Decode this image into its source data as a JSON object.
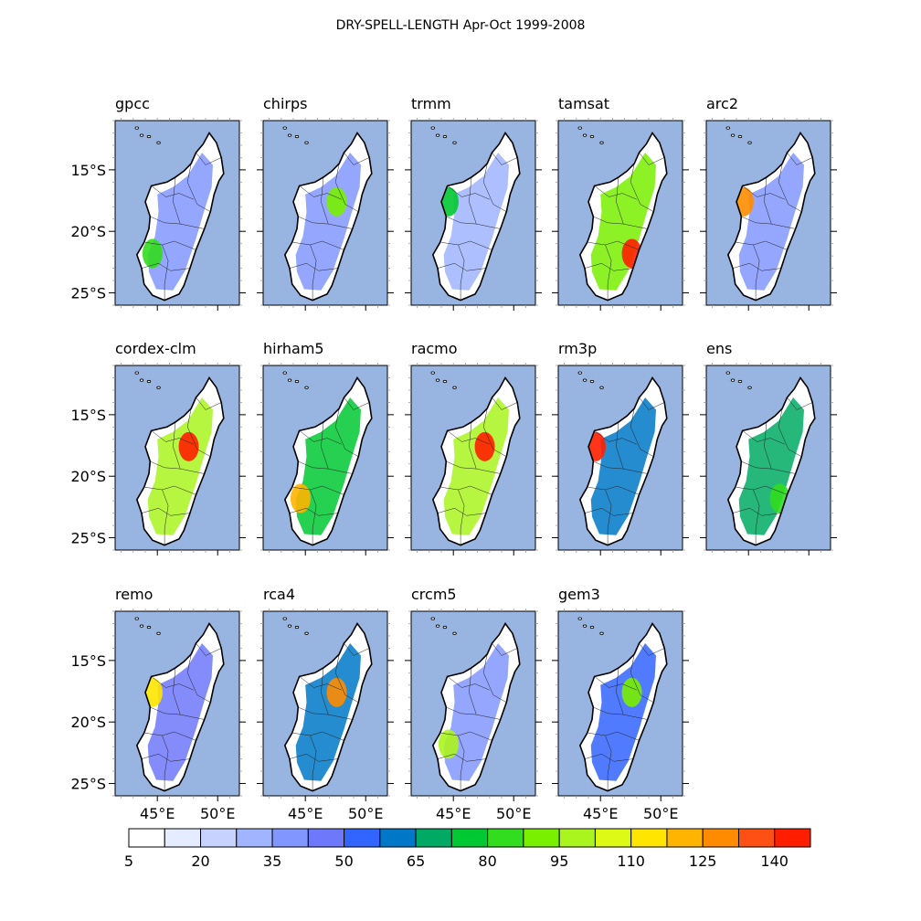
{
  "chart_data": {
    "type": "heatmap",
    "title": "DRY-SPELL-LENGTH Apr-Oct 1999-2008",
    "xlabel": "",
    "ylabel": "",
    "lat_ticks": [
      -15,
      -20,
      -25
    ],
    "lat_tick_labels": [
      "15°S",
      "20°S",
      "25°S"
    ],
    "lon_ticks": [
      45,
      50
    ],
    "lon_tick_labels": [
      "45°E",
      "50°E"
    ],
    "xlim": [
      41.5,
      51.8
    ],
    "ylim": [
      -26,
      -11
    ],
    "colorbar": {
      "levels": [
        5,
        12.5,
        20,
        27.5,
        35,
        42.5,
        50,
        57.5,
        65,
        72.5,
        80,
        87.5,
        95,
        102.5,
        110,
        117.5,
        125,
        132.5,
        140,
        147.5
      ],
      "tick_values": [
        5,
        20,
        35,
        50,
        65,
        80,
        95,
        110,
        125,
        140
      ],
      "tick_labels": [
        "5",
        "20",
        "35",
        "50",
        "65",
        "80",
        "95",
        "110",
        "125",
        "140"
      ],
      "colors": [
        "#ffffff",
        "#e6ecff",
        "#c8d2ff",
        "#a0b4ff",
        "#8296ff",
        "#6e78fa",
        "#3264ff",
        "#0078c8",
        "#00aa64",
        "#00c832",
        "#32dc1e",
        "#78f000",
        "#aaf51e",
        "#dcfa14",
        "#ffe600",
        "#ffb400",
        "#ff8c00",
        "#ff5014",
        "#ff1e00"
      ]
    },
    "panels": [
      {
        "name": "gpcc",
        "typical_value": 40,
        "hotspot_value": 85
      },
      {
        "name": "chirps",
        "typical_value": 40,
        "hotspot_value": 90
      },
      {
        "name": "trmm",
        "typical_value": 30,
        "hotspot_value": 75
      },
      {
        "name": "tamsat",
        "typical_value": 90,
        "hotspot_value": 145
      },
      {
        "name": "arc2",
        "typical_value": 35,
        "hotspot_value": 130
      },
      {
        "name": "cordex-clm",
        "typical_value": 95,
        "hotspot_value": 140
      },
      {
        "name": "hirham5",
        "typical_value": 75,
        "hotspot_value": 120
      },
      {
        "name": "racmo",
        "typical_value": 100,
        "hotspot_value": 145
      },
      {
        "name": "rm3p",
        "typical_value": 60,
        "hotspot_value": 140
      },
      {
        "name": "ens",
        "typical_value": 65,
        "hotspot_value": 85
      },
      {
        "name": "remo",
        "typical_value": 45,
        "hotspot_value": 110
      },
      {
        "name": "rca4",
        "typical_value": 60,
        "hotspot_value": 125
      },
      {
        "name": "crcm5",
        "typical_value": 40,
        "hotspot_value": 95
      },
      {
        "name": "gem3",
        "typical_value": 55,
        "hotspot_value": 90
      }
    ]
  },
  "colors": {
    "ocean": "#98b4e0",
    "land": "#ffffff",
    "coast": "#000000",
    "border": "#222222"
  }
}
